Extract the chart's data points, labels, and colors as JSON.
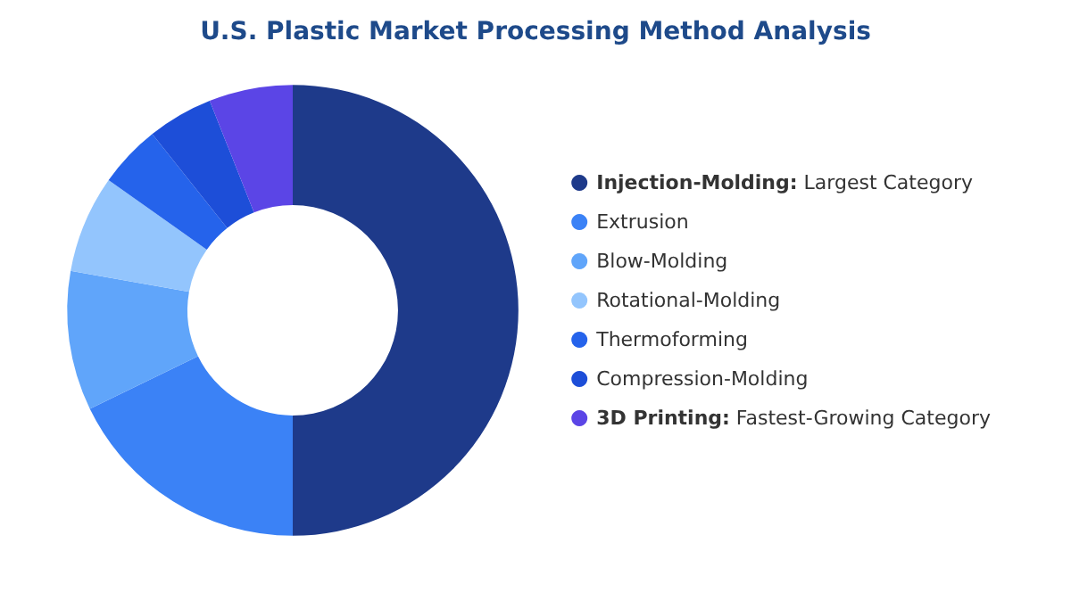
{
  "chart_data": {
    "type": "donut",
    "title": "U.S. Plastic Market Processing Method Analysis",
    "categories": [
      "Injection-Molding: Largest Category",
      "Extrusion",
      "Blow-Molding",
      "Rotational-Molding",
      "Thermoforming",
      "Compression-Molding",
      "3D Printing: Fastest-Growing Category"
    ],
    "values": [
      50,
      17.8,
      10,
      7,
      4.5,
      4.7,
      6
    ],
    "colors": [
      "#1e3a8a",
      "#3b82f6",
      "#60a5fa",
      "#93c5fd",
      "#2563eb",
      "#1d4ed8",
      "#5b45e6"
    ],
    "legend": "right"
  }
}
